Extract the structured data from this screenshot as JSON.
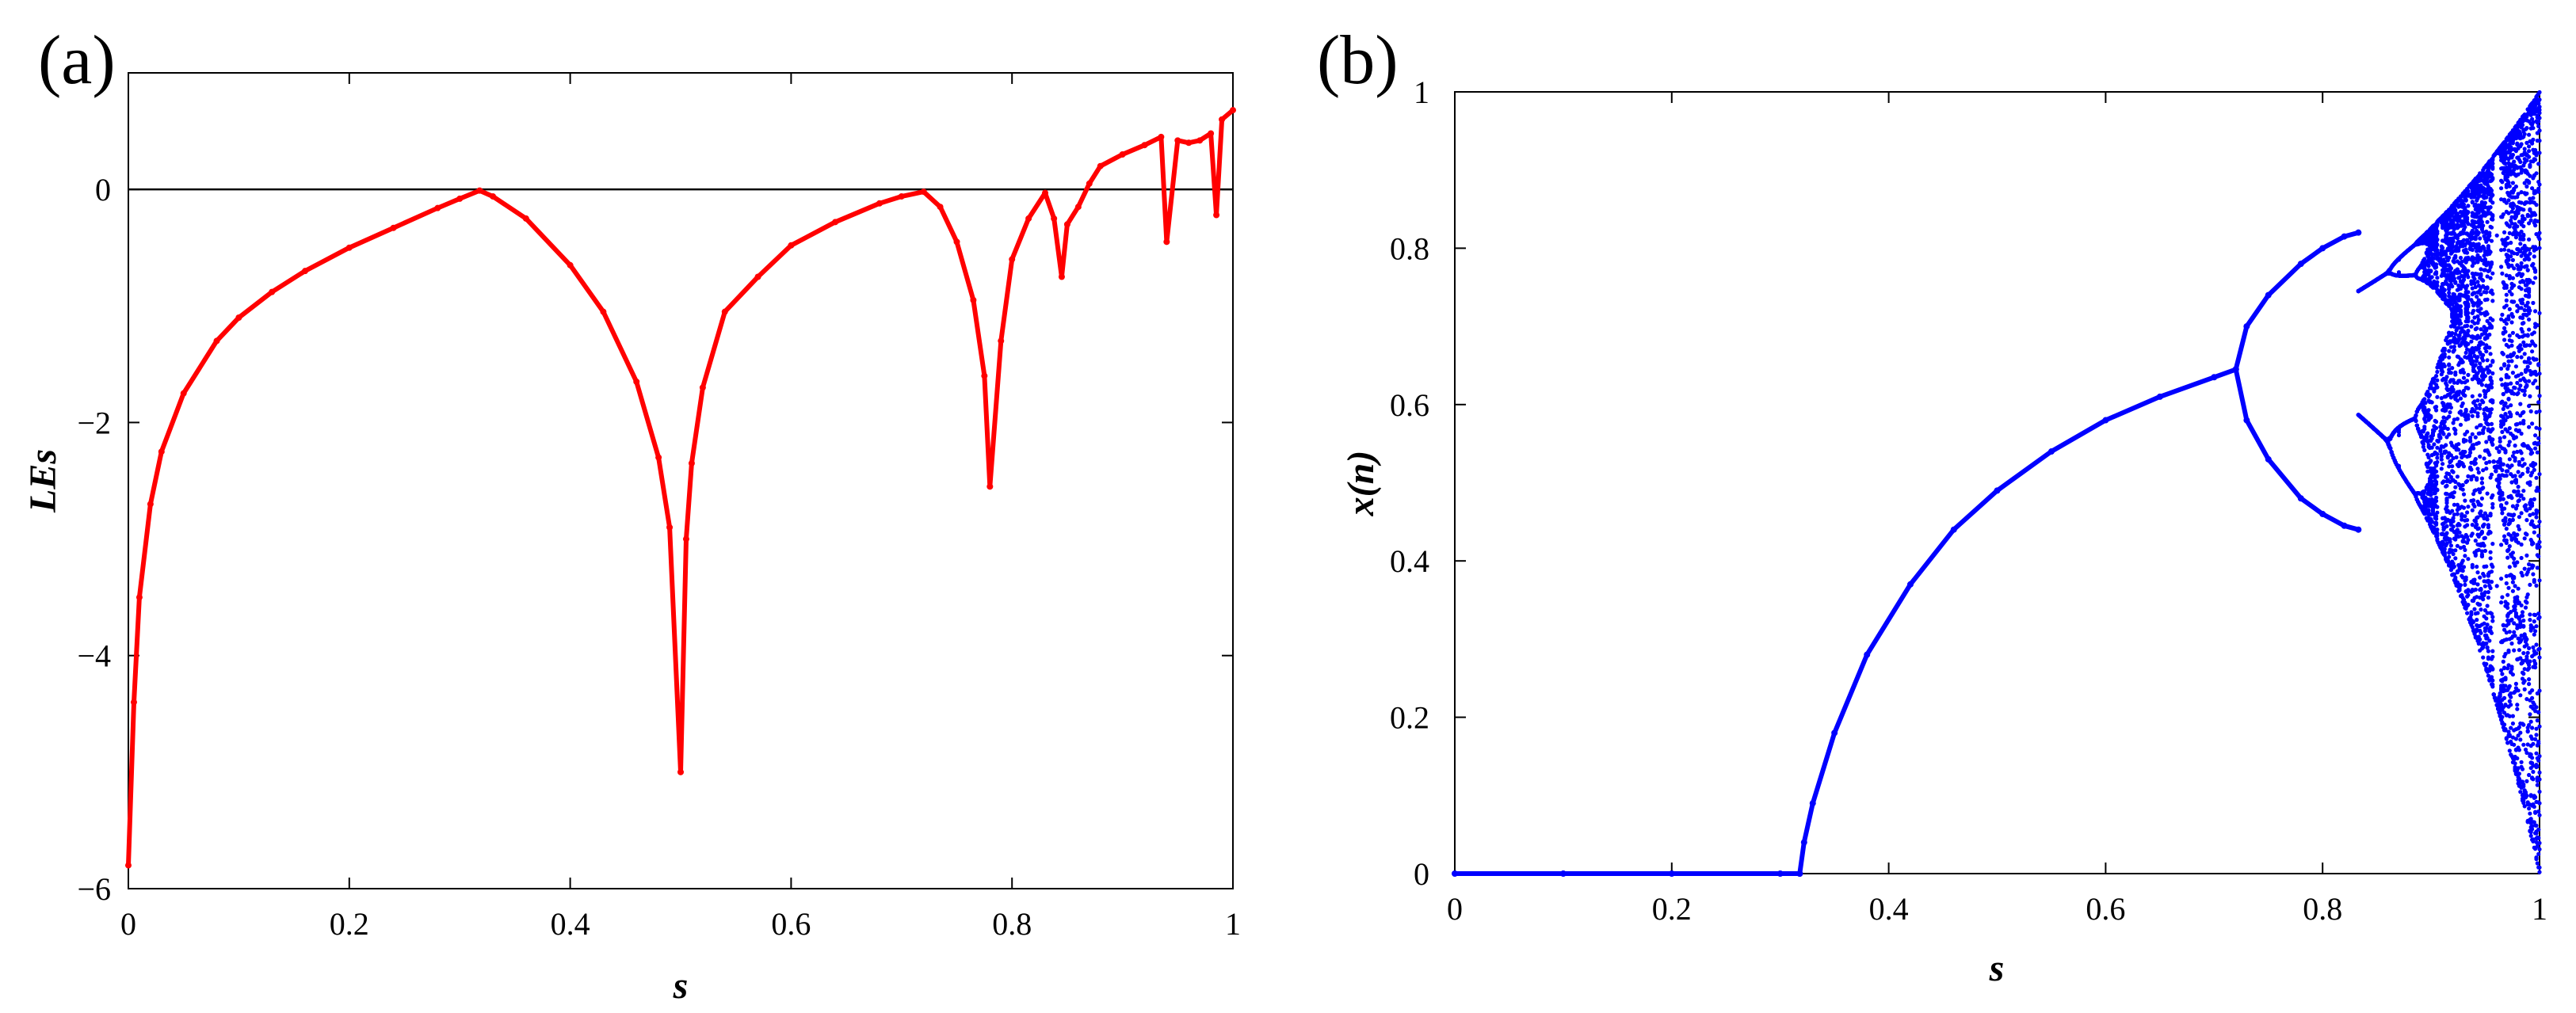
{
  "chart_data": [
    {
      "panel_label": "(a)",
      "type": "scatter",
      "color": "#ff0000",
      "xlabel": "s",
      "ylabel": "LEs",
      "xlim": [
        0,
        1
      ],
      "ylim": [
        -6,
        1
      ],
      "xticks": [
        0,
        0.2,
        0.4,
        0.6,
        0.8,
        1
      ],
      "xtick_labels": [
        "0",
        "0.2",
        "0.4",
        "0.6",
        "0.8",
        "1"
      ],
      "yticks": [
        -6,
        -4,
        -2,
        0
      ],
      "ytick_labels": [
        "−6",
        "−4",
        "−2",
        "0"
      ],
      "reference_line_y": 0,
      "series": [
        {
          "x": [
            0.0,
            0.005,
            0.01,
            0.02,
            0.03,
            0.05,
            0.08,
            0.1,
            0.13,
            0.16,
            0.2,
            0.24,
            0.28,
            0.3,
            0.318,
            0.33,
            0.36,
            0.4,
            0.43,
            0.46,
            0.48,
            0.49,
            0.5,
            0.505,
            0.51,
            0.52,
            0.54,
            0.57,
            0.6,
            0.64,
            0.68,
            0.7,
            0.72,
            0.735,
            0.75,
            0.765,
            0.775,
            0.78,
            0.79,
            0.8,
            0.815,
            0.83,
            0.838,
            0.845,
            0.85,
            0.86,
            0.87,
            0.88,
            0.9,
            0.92,
            0.935,
            0.94,
            0.95,
            0.96,
            0.97,
            0.98,
            0.985,
            0.99,
            1.0
          ],
          "y": [
            -5.8,
            -4.4,
            -3.5,
            -2.7,
            -2.25,
            -1.75,
            -1.3,
            -1.1,
            -0.88,
            -0.7,
            -0.5,
            -0.33,
            -0.16,
            -0.08,
            -0.01,
            -0.06,
            -0.25,
            -0.65,
            -1.05,
            -1.65,
            -2.3,
            -2.9,
            -5.0,
            -3.0,
            -2.35,
            -1.7,
            -1.05,
            -0.75,
            -0.48,
            -0.28,
            -0.12,
            -0.06,
            -0.02,
            -0.15,
            -0.45,
            -0.95,
            -1.6,
            -2.55,
            -1.3,
            -0.6,
            -0.25,
            -0.03,
            -0.25,
            -0.75,
            -0.3,
            -0.15,
            0.05,
            0.2,
            0.3,
            0.38,
            0.45,
            -0.45,
            0.42,
            0.4,
            0.42,
            0.48,
            -0.22,
            0.6,
            0.68
          ]
        }
      ]
    },
    {
      "panel_label": "(b)",
      "type": "scatter",
      "color": "#0000ff",
      "xlabel": "s",
      "ylabel": "x(n)",
      "xlim": [
        0,
        1
      ],
      "ylim": [
        0,
        1
      ],
      "xticks": [
        0,
        0.2,
        0.4,
        0.6,
        0.8,
        1
      ],
      "xtick_labels": [
        "0",
        "0.2",
        "0.4",
        "0.6",
        "0.8",
        "1"
      ],
      "yticks": [
        0,
        0.2,
        0.4,
        0.6,
        0.8,
        1
      ],
      "ytick_labels": [
        "0",
        "0.2",
        "0.4",
        "0.6",
        "0.8",
        "1"
      ],
      "series": [
        {
          "name": "",
          "x": [
            0.0,
            0.1,
            0.2,
            0.3,
            0.318
          ],
          "y": [
            0,
            0,
            0,
            0,
            0
          ]
        },
        {
          "name": "",
          "x": [
            0.318,
            0.322,
            0.33,
            0.35,
            0.38,
            0.42,
            0.46,
            0.5,
            0.55,
            0.6,
            0.65,
            0.7,
            0.72
          ],
          "y": [
            0.0,
            0.04,
            0.09,
            0.18,
            0.28,
            0.37,
            0.44,
            0.49,
            0.54,
            0.58,
            0.61,
            0.635,
            0.645
          ]
        },
        {
          "name": "",
          "x": [
            0.72,
            0.73,
            0.75,
            0.78,
            0.8,
            0.82,
            0.833
          ],
          "y": [
            0.645,
            0.7,
            0.74,
            0.78,
            0.8,
            0.815,
            0.82
          ]
        },
        {
          "name": "",
          "x": [
            0.72,
            0.73,
            0.75,
            0.78,
            0.8,
            0.82,
            0.833
          ],
          "y": [
            0.645,
            0.58,
            0.53,
            0.48,
            0.46,
            0.445,
            0.44
          ]
        }
      ],
      "chaotic_band": {
        "x_range": [
          0.833,
          1.0
        ]
      }
    }
  ]
}
